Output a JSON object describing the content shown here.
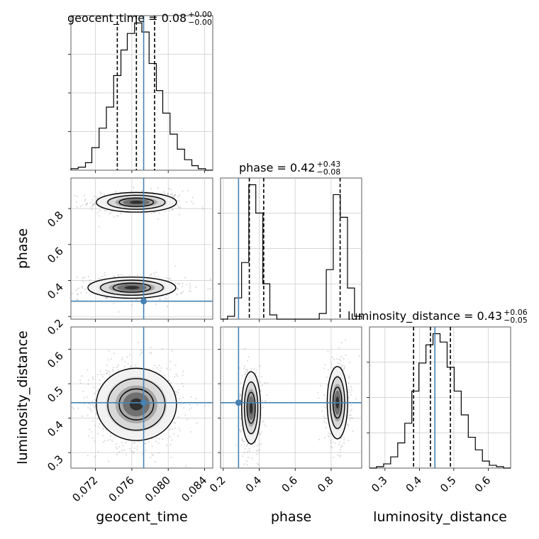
{
  "chart_data": {
    "type": "corner",
    "parameters": [
      "geocent_time",
      "phase",
      "luminosity_distance"
    ],
    "truths": {
      "geocent_time": 0.0773,
      "phase": 0.285,
      "luminosity_distance": 0.445
    },
    "ranges": {
      "geocent_time": [
        0.0693,
        0.0849
      ],
      "phase": [
        0.185,
        0.97
      ],
      "luminosity_distance": [
        0.255,
        0.665
      ]
    },
    "ticks": {
      "geocent_time": [
        0.072,
        0.076,
        0.08,
        0.084
      ],
      "phase": [
        0.2,
        0.4,
        0.6,
        0.8
      ],
      "luminosity_distance": [
        0.3,
        0.4,
        0.5,
        0.6
      ]
    },
    "tick_labels": {
      "geocent_time": [
        "0.072",
        "0.076",
        "0.080",
        "0.084"
      ],
      "phase": [
        "0.2",
        "0.4",
        "0.6",
        "0.8"
      ],
      "luminosity_distance": [
        "0.3",
        "0.4",
        "0.5",
        "0.6"
      ]
    },
    "titles": {
      "geocent_time": {
        "label": "geocent_time = 0.08",
        "upper": "+0.00",
        "lower": "−0.00"
      },
      "phase": {
        "label": "phase = 0.42",
        "upper": "+0.43",
        "lower": "−0.08"
      },
      "luminosity_distance": {
        "label": "luminosity_distance = 0.43",
        "upper": "+0.06",
        "lower": "−0.05"
      }
    },
    "quantiles": {
      "geocent_time": [
        0.0744,
        0.0765,
        0.0785
      ],
      "phase": [
        0.345,
        0.425,
        0.85
      ],
      "luminosity_distance": [
        0.383,
        0.432,
        0.49
      ]
    },
    "histograms": {
      "geocent_time": {
        "edges": [
          0.0693,
          0.0701,
          0.0709,
          0.0716,
          0.0724,
          0.0732,
          0.074,
          0.0748,
          0.0755,
          0.0763,
          0.0771,
          0.0779,
          0.0787,
          0.0794,
          0.0802,
          0.081,
          0.0818,
          0.0826,
          0.0833,
          0.0841,
          0.0849
        ],
        "counts": [
          1,
          2,
          5,
          15,
          28,
          42,
          63,
          80,
          91,
          98,
          92,
          71,
          53,
          38,
          24,
          14,
          7,
          3,
          1,
          0
        ]
      },
      "phase": {
        "edges": [
          0.185,
          0.224,
          0.263,
          0.302,
          0.342,
          0.381,
          0.42,
          0.459,
          0.498,
          0.538,
          0.577,
          0.616,
          0.655,
          0.695,
          0.734,
          0.773,
          0.812,
          0.851,
          0.891,
          0.93,
          0.97
        ],
        "counts": [
          0,
          2,
          15,
          40,
          95,
          75,
          25,
          3,
          0,
          0,
          0,
          0,
          0,
          0,
          4,
          35,
          88,
          72,
          22,
          2
        ]
      },
      "luminosity_distance": {
        "edges": [
          0.255,
          0.2755,
          0.296,
          0.3165,
          0.337,
          0.3575,
          0.378,
          0.3985,
          0.419,
          0.4395,
          0.46,
          0.4805,
          0.501,
          0.5215,
          0.542,
          0.5625,
          0.583,
          0.6035,
          0.624,
          0.6445,
          0.665
        ],
        "counts": [
          0,
          1,
          3,
          8,
          18,
          32,
          55,
          75,
          88,
          96,
          90,
          72,
          55,
          38,
          22,
          13,
          5,
          2,
          1,
          0
        ]
      }
    },
    "grid": true
  }
}
